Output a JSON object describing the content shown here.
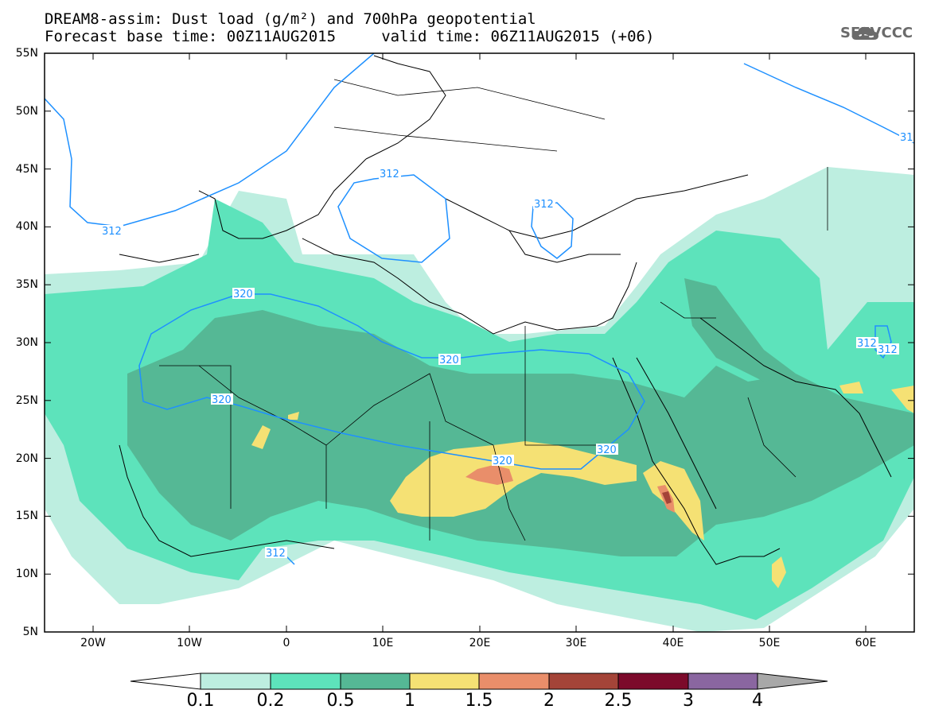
{
  "title": {
    "line1": "DREAM8-assim: Dust load (g/m²) and 700hPa geopotential",
    "line2": "Forecast base time: 00Z11AUG2015     valid time: 06Z11AUG2015 (+06)"
  },
  "logo": {
    "text": "SEEVCCC",
    "icon": "cloud-icon"
  },
  "axes": {
    "lat_labels": [
      "55N",
      "50N",
      "45N",
      "40N",
      "35N",
      "30N",
      "25N",
      "20N",
      "15N",
      "10N",
      "5N"
    ],
    "lon_labels": [
      "20W",
      "10W",
      "0",
      "10E",
      "20E",
      "30E",
      "40E",
      "50E",
      "60E"
    ]
  },
  "contour_labels": {
    "c312_a": "312",
    "c312_b": "312",
    "c312_c": "312",
    "c312_d": "312",
    "c320_a": "320",
    "c320_b": "320",
    "c320_c": "320",
    "c320_d": "320",
    "c320_e": "320",
    "c312_e": "312",
    "c312_f": "312",
    "c31_edge": "31"
  },
  "colorbar": {
    "labels": [
      "0.1",
      "0.2",
      "0.5",
      "1",
      "1.5",
      "2",
      "2.5",
      "3",
      "4"
    ],
    "colors": [
      "#bdeee0",
      "#5de3bb",
      "#55b895",
      "#f5e174",
      "#e98e6a",
      "#a44438",
      "#7c0a2b",
      "#8a66a0"
    ]
  },
  "shading_colors": {
    "very_light": "#bdeee0",
    "light": "#5de3bb",
    "medium": "#55b895",
    "yellow": "#f5e174",
    "orange": "#e98e6a",
    "dark_red": "#a44438"
  },
  "contour_color": "#1e90ff"
}
